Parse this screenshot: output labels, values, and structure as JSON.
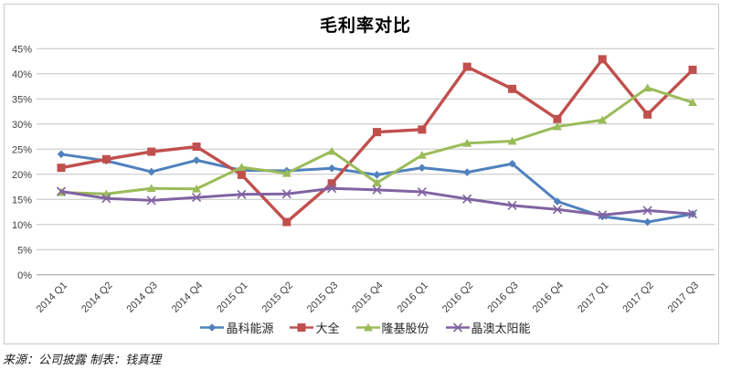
{
  "chart": {
    "colors": {
      "gridline": "#c3c3c3",
      "axis_line": "#9d9d9d",
      "frame_border": "#c9c9c9",
      "axis_text": "#3f3f3f"
    }
  },
  "footer": {
    "source_note": "来源：公司披露 制表：钱真理"
  },
  "chart_data": {
    "type": "line",
    "title": "毛利率对比",
    "xlabel": "",
    "ylabel": "",
    "ylim": [
      0,
      45
    ],
    "ytick_step": 5,
    "ytick_labels": [
      "0%",
      "5%",
      "10%",
      "15%",
      "20%",
      "25%",
      "30%",
      "35%",
      "40%",
      "45%"
    ],
    "grid": true,
    "legend_position": "bottom",
    "categories": [
      "2014 Q1",
      "2014 Q2",
      "2014 Q3",
      "2014 Q4",
      "2015 Q1",
      "2015 Q2",
      "2015 Q3",
      "2015 Q4",
      "2016 Q1",
      "2016 Q2",
      "2016 Q3",
      "2016 Q4",
      "2017 Q1",
      "2017 Q2",
      "2017 Q3"
    ],
    "series": [
      {
        "name": "晶科能源",
        "color": "#4F81BD",
        "marker": "diamond",
        "values": [
          24.0,
          22.7,
          20.5,
          22.8,
          20.8,
          20.7,
          21.2,
          19.9,
          21.3,
          20.4,
          22.1,
          14.6,
          11.6,
          10.5,
          12.1
        ]
      },
      {
        "name": "大全",
        "color": "#C0504D",
        "marker": "square",
        "values": [
          21.3,
          23.0,
          24.5,
          25.5,
          19.9,
          10.5,
          18.2,
          28.4,
          28.9,
          41.4,
          37.0,
          31.0,
          42.9,
          31.9,
          40.8
        ]
      },
      {
        "name": "隆基股份",
        "color": "#9BBB59",
        "marker": "triangle",
        "values": [
          16.4,
          16.1,
          17.2,
          17.1,
          21.4,
          20.2,
          24.6,
          18.3,
          23.8,
          26.2,
          26.6,
          29.5,
          30.8,
          37.2,
          34.3
        ]
      },
      {
        "name": "晶澳太阳能",
        "color": "#8064A2",
        "marker": "x",
        "values": [
          16.6,
          15.2,
          14.8,
          15.4,
          16.0,
          16.1,
          17.2,
          16.9,
          16.5,
          15.1,
          13.8,
          13.0,
          11.9,
          12.8,
          12.1
        ]
      }
    ]
  }
}
